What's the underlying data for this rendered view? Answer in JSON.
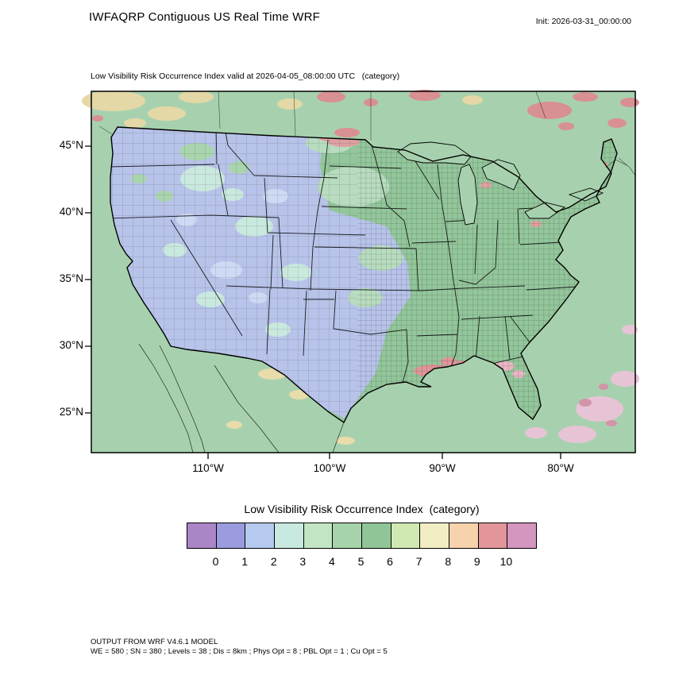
{
  "header": {
    "title": "IWFAQRP Contiguous US Real Time WRF",
    "init_label": "Init: 2026-03-31_00:00:00"
  },
  "map": {
    "subtitle": "Low Visibility Risk Occurrence Index valid at 2026-04-05_08:00:00 UTC   (category)",
    "lat_ticks": [
      "45°N",
      "40°N",
      "35°N",
      "30°N",
      "25°N"
    ],
    "lon_ticks": [
      "110°W",
      "100°W",
      "90°W",
      "80°W"
    ],
    "colors": {
      "ocean": "#a7d1ae",
      "west": "#b7c3e9",
      "east": "#93c69b",
      "patch_tan": "#e4d8a6",
      "patch_red": "#d89092",
      "patch_pink": "#e6c4d6",
      "patch_rose": "#d494a8",
      "patch_yellow": "#e8dcab",
      "patch_plains": "#b8dcbf",
      "patch_cyan": "#c9e8de",
      "patch_pale_blue": "#ced9f3",
      "patch_green": "#a9d4ad",
      "patch_red_strong": "#e09598",
      "patch_pink_us": "#eab6c3",
      "patch_salmon": "#dfa0a1"
    }
  },
  "legend": {
    "title": "Low Visibility Risk Occurrence Index  (category)",
    "tick_labels": [
      "0",
      "1",
      "2",
      "3",
      "4",
      "5",
      "6",
      "7",
      "8",
      "9",
      "10"
    ],
    "cell_colors": [
      "#ab86c6",
      "#9b9ce0",
      "#b6c9ef",
      "#c7e9e0",
      "#c2e6c4",
      "#a7d3ab",
      "#90c697",
      "#d0e9b3",
      "#f2eec4",
      "#f6d2ad",
      "#e29699",
      "#d495bf"
    ]
  },
  "footer": {
    "line1": "OUTPUT FROM WRF V4.6.1 MODEL",
    "line2": "WE = 580 ; SN = 380 ; Levels = 38 ; Dis = 8km ; Phys Opt = 8 ; PBL Opt = 1 ; Cu Opt = 5"
  }
}
